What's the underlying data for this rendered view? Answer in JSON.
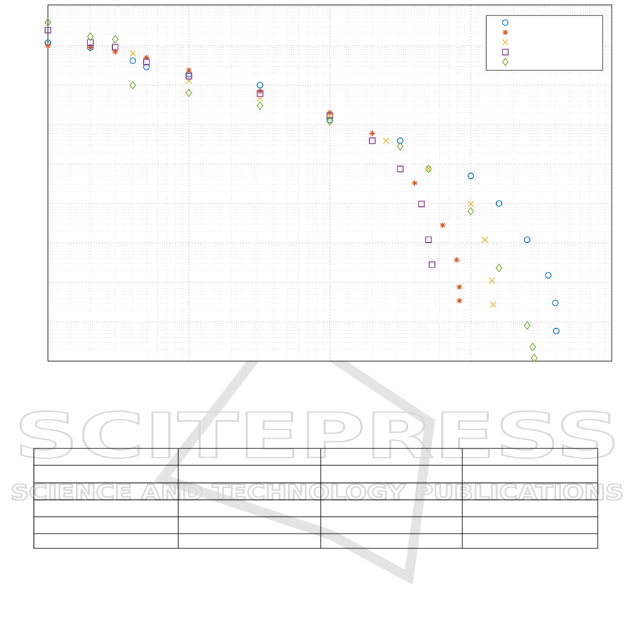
{
  "chart_data": {
    "type": "scatter",
    "log_x": true,
    "log_y": true,
    "grid": true,
    "legend": "northeast",
    "xlim": [
      1,
      10000
    ],
    "ylim": [
      1e-08,
      10
    ],
    "xticks": [
      1,
      10,
      100,
      1000,
      10000
    ],
    "yticks": [
      1e-08,
      1e-07,
      1e-06,
      1e-05,
      0.0001,
      0.001,
      0.01,
      0.1,
      1,
      10
    ],
    "series": [
      {
        "color": "#0072bd",
        "marker": "circle",
        "x": [
          1,
          2,
          4,
          5,
          10,
          32,
          100,
          316,
          1000,
          1585,
          2512,
          3548,
          3980,
          4040
        ],
        "values": [
          1.2,
          0.9,
          0.42,
          0.29,
          0.19,
          0.1,
          0.013,
          0.0039,
          0.0005,
          0.0001,
          1.2e-05,
          1.5e-06,
          3e-07,
          5.8e-08
        ]
      },
      {
        "color": "#d95319",
        "marker": "asterisk",
        "x": [
          1,
          2,
          3,
          5,
          10,
          32,
          100,
          200,
          400,
          631,
          794,
          830,
          830
        ],
        "values": [
          1,
          0.9,
          0.7,
          0.5,
          0.24,
          0.07,
          0.02,
          0.006,
          0.00033,
          2.8e-05,
          3.7e-06,
          7.6e-07,
          3.4e-07
        ]
      },
      {
        "color": "#edb120",
        "marker": "x",
        "x": [
          4,
          10,
          32,
          100,
          251,
          501,
          1000,
          1259,
          1413,
          1445
        ],
        "values": [
          0.64,
          0.13,
          0.046,
          0.017,
          0.0039,
          0.00075,
          9.7e-05,
          1.2e-05,
          1.1e-06,
          2.7e-07
        ]
      },
      {
        "color": "#7e2f8e",
        "marker": "square",
        "x": [
          1,
          2,
          3,
          5,
          10,
          32,
          100,
          200,
          316,
          447,
          501,
          531
        ],
        "values": [
          2.5,
          1.2,
          0.92,
          0.39,
          0.17,
          0.061,
          0.017,
          0.0039,
          0.00075,
          9.7e-05,
          1.2e-05,
          2.8e-06
        ]
      },
      {
        "color": "#77ac30",
        "marker": "diamond",
        "x": [
          1,
          2,
          3,
          4,
          10,
          32,
          100,
          316,
          501,
          1000,
          1585,
          2512,
          2754,
          2818
        ],
        "values": [
          3.9,
          1.7,
          1.45,
          0.1,
          0.064,
          0.03,
          0.012,
          0.0028,
          0.00075,
          6.3e-05,
          2.3e-06,
          8e-08,
          2.3e-08,
          1.2e-08
        ]
      }
    ]
  },
  "watermark": {
    "title": "SCITEPRESS",
    "subtitle": "SCIENCE AND TECHNOLOGY PUBLICATIONS"
  }
}
